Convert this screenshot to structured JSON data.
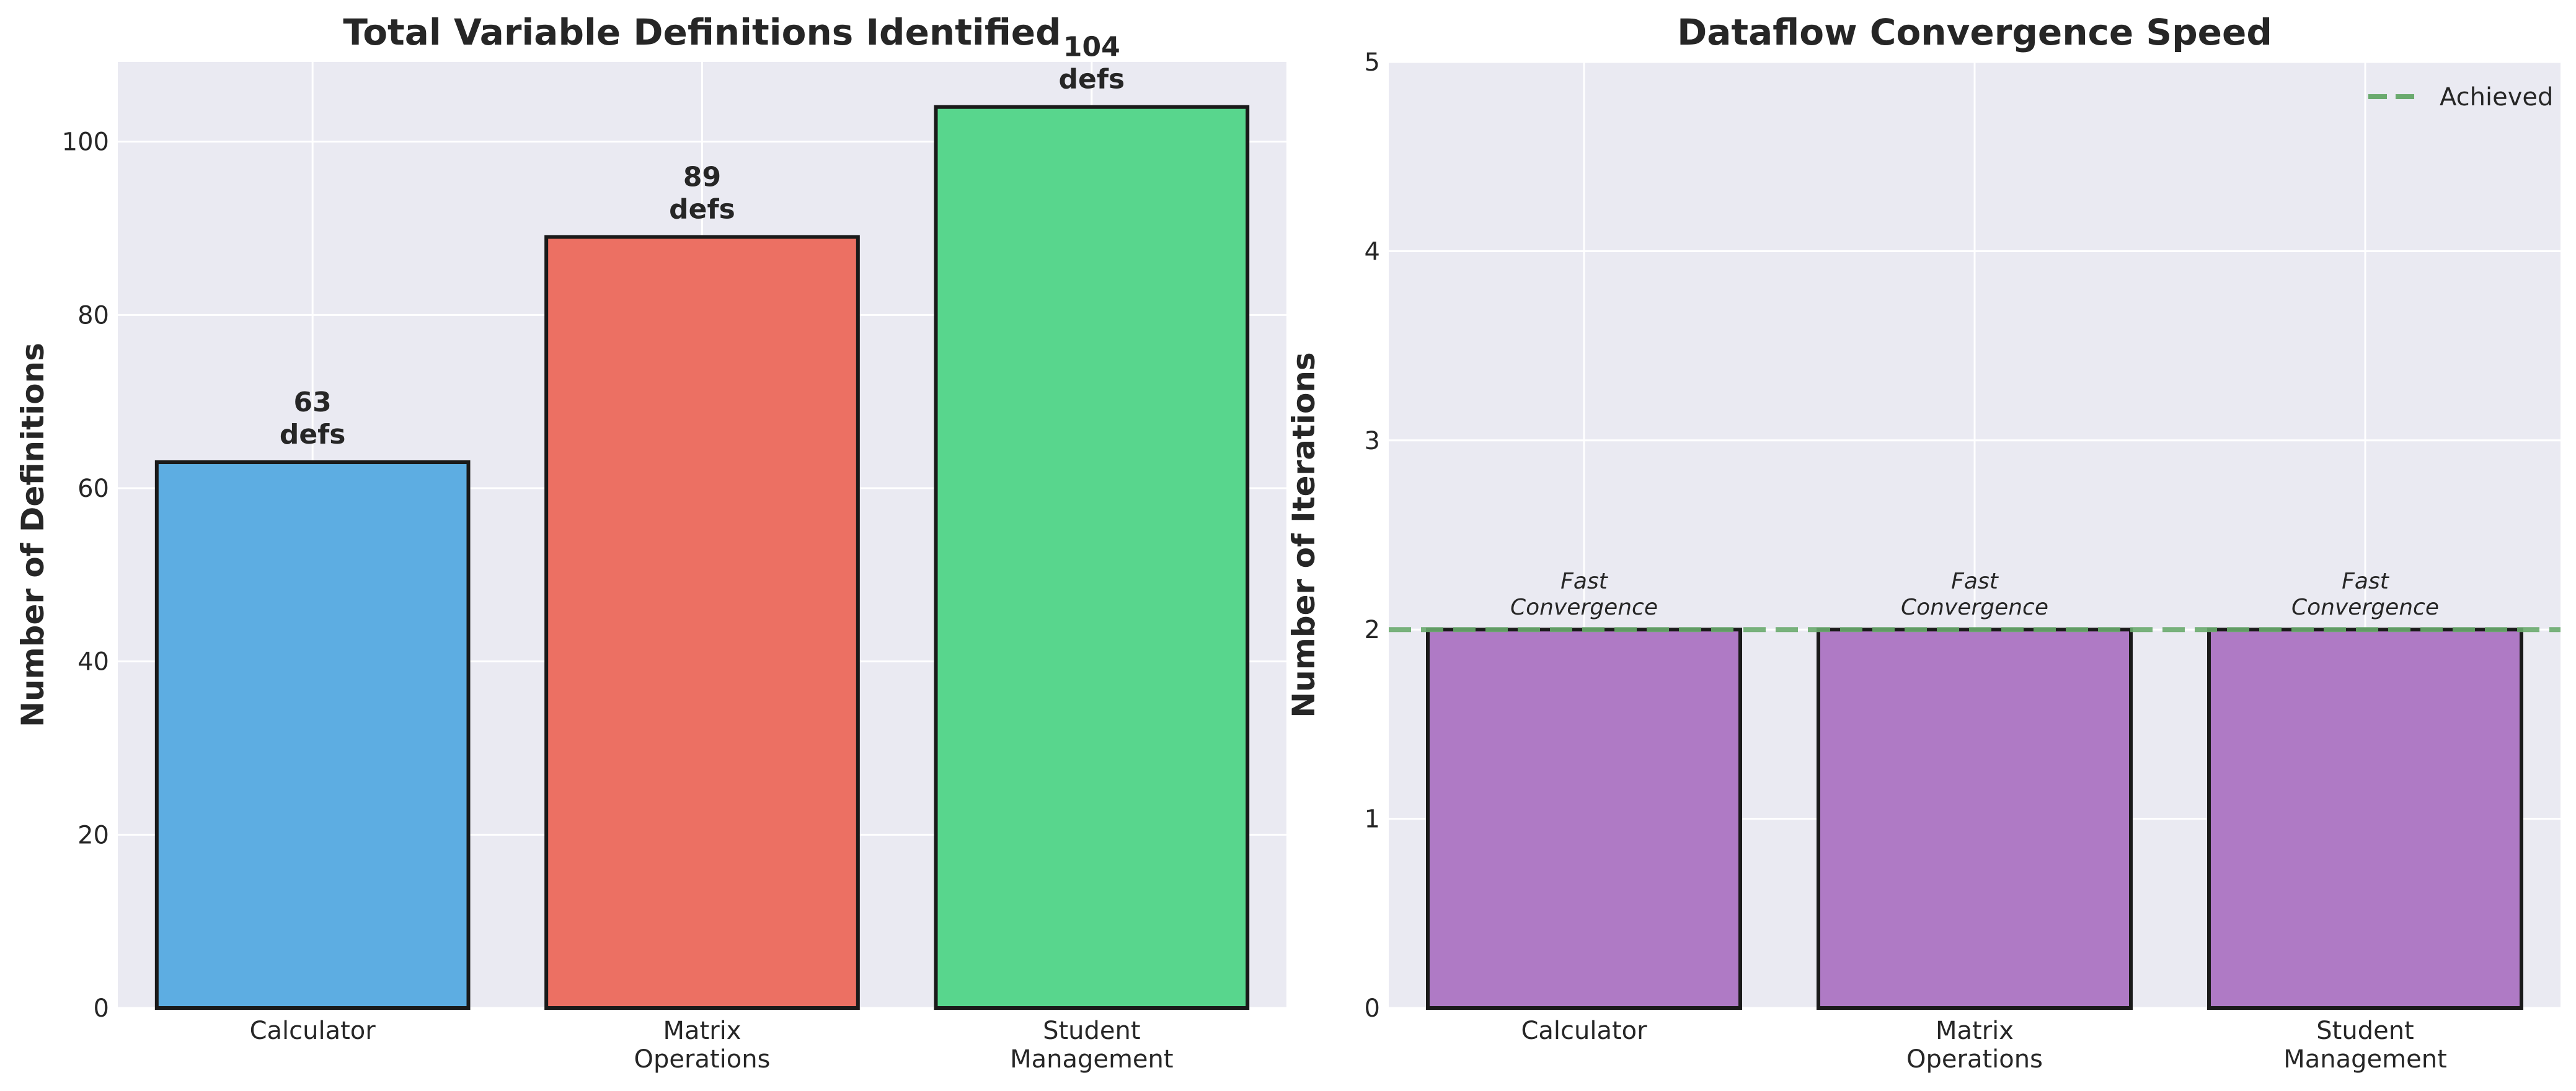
{
  "chart_data": [
    {
      "type": "bar",
      "title": "Total Variable Definitions Identified",
      "xlabel": "",
      "ylabel": "Number of Definitions",
      "categories": [
        "Calculator",
        "Matrix\nOperations",
        "Student\nManagement"
      ],
      "values": [
        63,
        89,
        104
      ],
      "bar_colors": [
        "#5dade2",
        "#ec7063",
        "#58d68d"
      ],
      "data_labels": [
        "63\ndefs",
        "89\ndefs",
        "104\ndefs"
      ],
      "ylim": [
        0,
        109.2
      ],
      "yticks": [
        0,
        20,
        40,
        60,
        80,
        100
      ],
      "grid": true
    },
    {
      "type": "bar",
      "title": "Dataflow Convergence Speed",
      "xlabel": "",
      "ylabel": "Number of Iterations",
      "categories": [
        "Calculator",
        "Matrix\nOperations",
        "Student\nManagement"
      ],
      "values": [
        2,
        2,
        2
      ],
      "bar_colors": [
        "#af7ac5",
        "#af7ac5",
        "#af7ac5"
      ],
      "data_labels": [
        "Fast\nConvergence",
        "Fast\nConvergence",
        "Fast\nConvergence"
      ],
      "ylim": [
        0,
        5
      ],
      "yticks": [
        0,
        1,
        2,
        3,
        4,
        5
      ],
      "reference_line": {
        "y": 2,
        "name": "Achieved",
        "color": "#6aaa6e",
        "style": "dashed"
      },
      "legend": {
        "entries": [
          "Achieved"
        ],
        "placement": "top-right"
      },
      "grid": true
    }
  ],
  "colors": {
    "plot_background": "#eaeaf2",
    "gridline": "#ffffff",
    "bar_edge": "#1a1a1a",
    "text": "#262626"
  }
}
